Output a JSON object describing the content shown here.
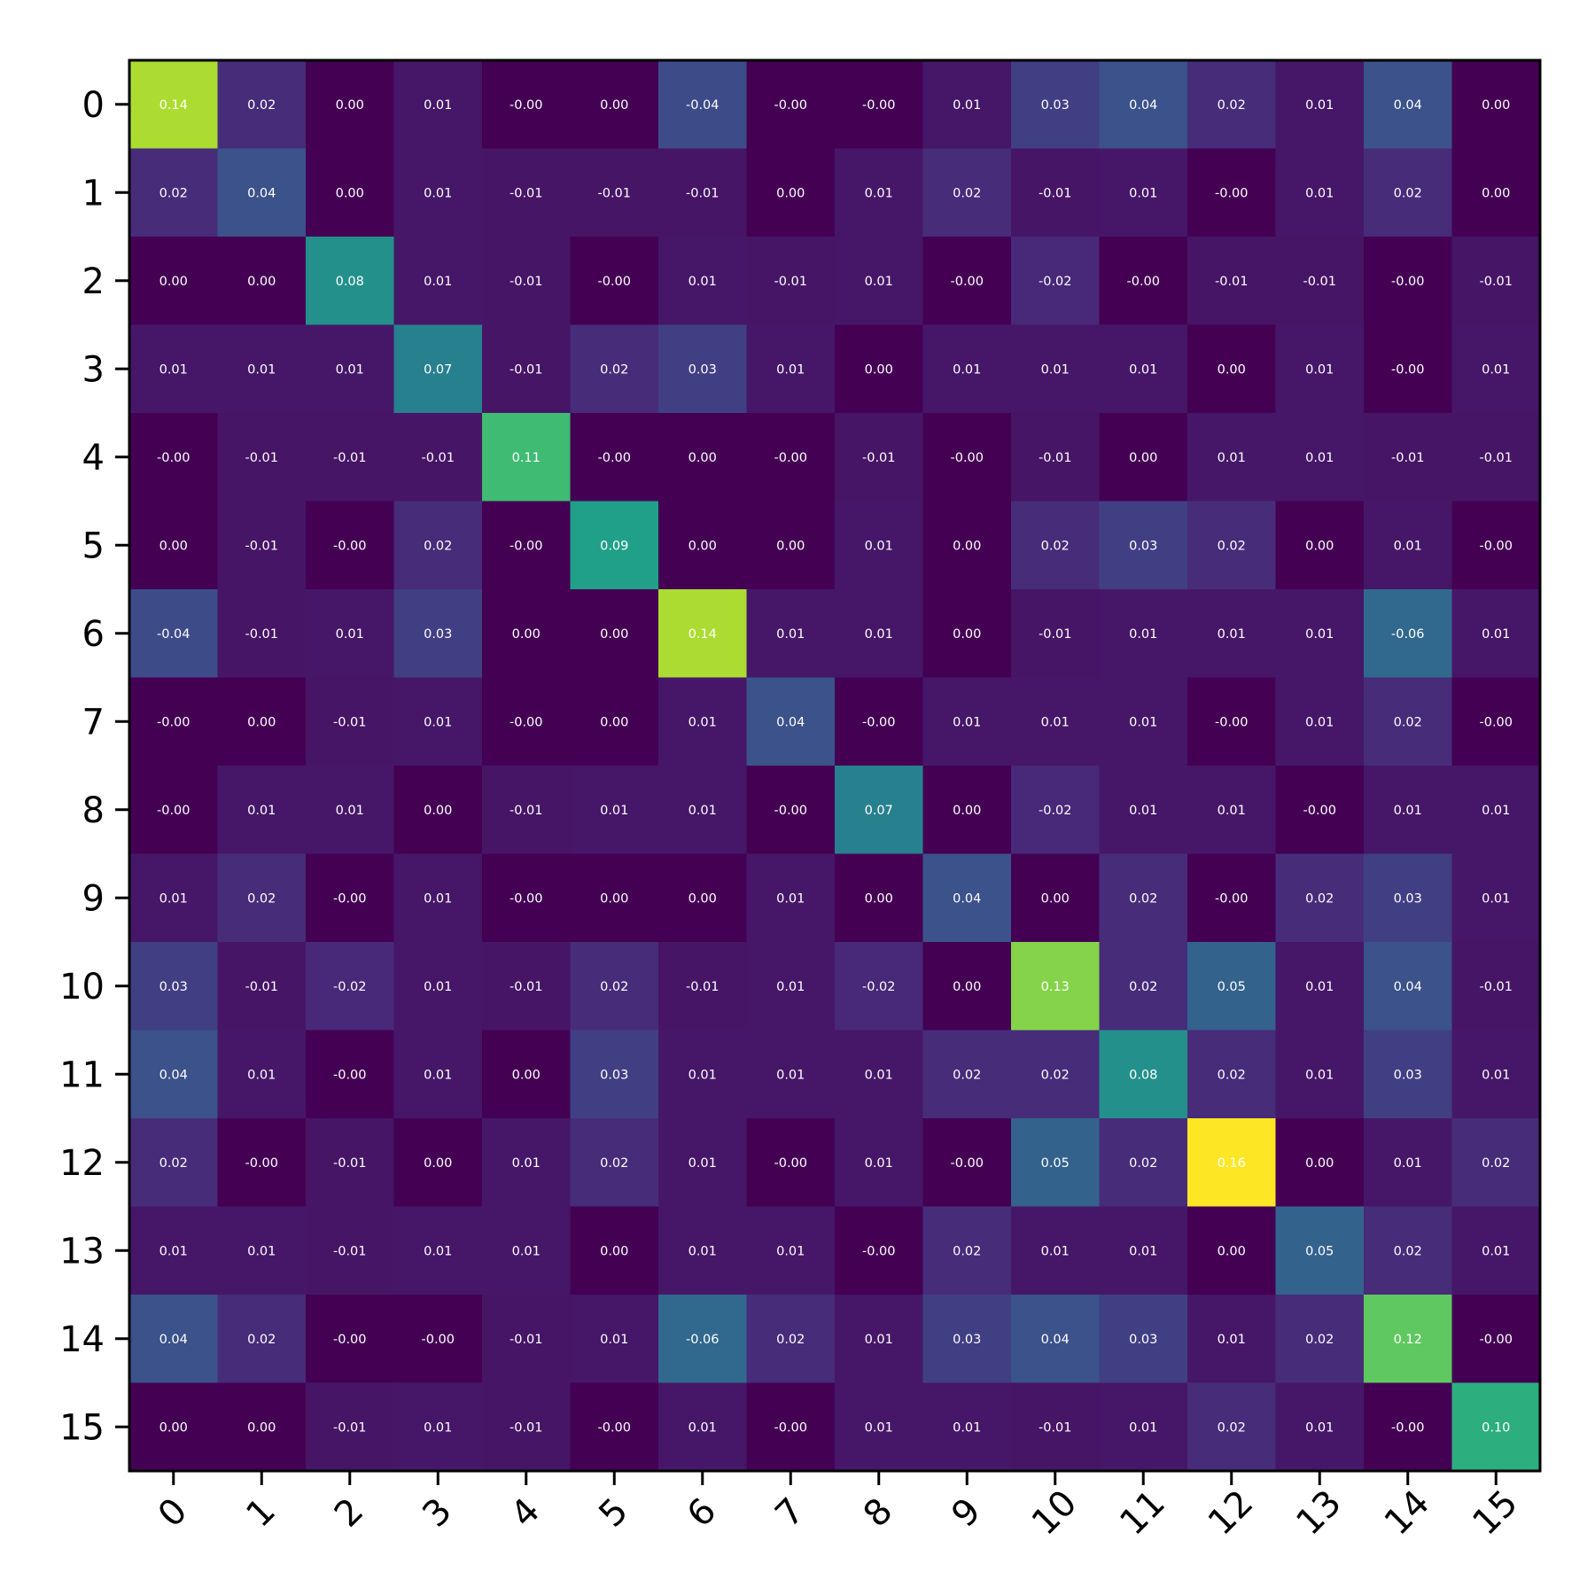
{
  "chart_data": {
    "type": "heatmap",
    "colormap": "viridis",
    "value_range": [
      -0.06,
      0.16
    ],
    "x_labels": [
      "0",
      "1",
      "2",
      "3",
      "4",
      "5",
      "6",
      "7",
      "8",
      "9",
      "10",
      "11",
      "12",
      "13",
      "14",
      "15"
    ],
    "y_labels": [
      "0",
      "1",
      "2",
      "3",
      "4",
      "5",
      "6",
      "7",
      "8",
      "9",
      "10",
      "11",
      "12",
      "13",
      "14",
      "15"
    ],
    "x_tick_rotation": 45,
    "values": [
      [
        0.14,
        0.02,
        0.0,
        0.01,
        -0.0,
        0.0,
        -0.04,
        -0.0,
        -0.0,
        0.01,
        0.03,
        0.04,
        0.02,
        0.01,
        0.04,
        0.0
      ],
      [
        0.02,
        0.04,
        0.0,
        0.01,
        -0.01,
        -0.01,
        -0.01,
        0.0,
        0.01,
        0.02,
        -0.01,
        0.01,
        -0.0,
        0.01,
        0.02,
        0.0
      ],
      [
        0.0,
        0.0,
        0.08,
        0.01,
        -0.01,
        -0.0,
        0.01,
        -0.01,
        0.01,
        -0.0,
        -0.02,
        -0.0,
        -0.01,
        -0.01,
        -0.0,
        -0.01
      ],
      [
        0.01,
        0.01,
        0.01,
        0.07,
        -0.01,
        0.02,
        0.03,
        0.01,
        0.0,
        0.01,
        0.01,
        0.01,
        0.0,
        0.01,
        -0.0,
        0.01
      ],
      [
        -0.0,
        -0.01,
        -0.01,
        -0.01,
        0.11,
        -0.0,
        0.0,
        -0.0,
        -0.01,
        -0.0,
        -0.01,
        0.0,
        0.01,
        0.01,
        -0.01,
        -0.01
      ],
      [
        0.0,
        -0.01,
        -0.0,
        0.02,
        -0.0,
        0.09,
        0.0,
        0.0,
        0.01,
        0.0,
        0.02,
        0.03,
        0.02,
        0.0,
        0.01,
        -0.0
      ],
      [
        -0.04,
        -0.01,
        0.01,
        0.03,
        0.0,
        0.0,
        0.14,
        0.01,
        0.01,
        0.0,
        -0.01,
        0.01,
        0.01,
        0.01,
        -0.06,
        0.01
      ],
      [
        -0.0,
        0.0,
        -0.01,
        0.01,
        -0.0,
        0.0,
        0.01,
        0.04,
        -0.0,
        0.01,
        0.01,
        0.01,
        -0.0,
        0.01,
        0.02,
        -0.0
      ],
      [
        -0.0,
        0.01,
        0.01,
        0.0,
        -0.01,
        0.01,
        0.01,
        -0.0,
        0.07,
        0.0,
        -0.02,
        0.01,
        0.01,
        -0.0,
        0.01,
        0.01
      ],
      [
        0.01,
        0.02,
        -0.0,
        0.01,
        -0.0,
        0.0,
        0.0,
        0.01,
        0.0,
        0.04,
        0.0,
        0.02,
        -0.0,
        0.02,
        0.03,
        0.01
      ],
      [
        0.03,
        -0.01,
        -0.02,
        0.01,
        -0.01,
        0.02,
        -0.01,
        0.01,
        -0.02,
        0.0,
        0.13,
        0.02,
        0.05,
        0.01,
        0.04,
        -0.01
      ],
      [
        0.04,
        0.01,
        -0.0,
        0.01,
        0.0,
        0.03,
        0.01,
        0.01,
        0.01,
        0.02,
        0.02,
        0.08,
        0.02,
        0.01,
        0.03,
        0.01
      ],
      [
        0.02,
        -0.0,
        -0.01,
        0.0,
        0.01,
        0.02,
        0.01,
        -0.0,
        0.01,
        -0.0,
        0.05,
        0.02,
        0.16,
        0.0,
        0.01,
        0.02
      ],
      [
        0.01,
        0.01,
        -0.01,
        0.01,
        0.01,
        0.0,
        0.01,
        0.01,
        -0.0,
        0.02,
        0.01,
        0.01,
        0.0,
        0.05,
        0.02,
        0.01
      ],
      [
        0.04,
        0.02,
        -0.0,
        -0.0,
        -0.01,
        0.01,
        -0.06,
        0.02,
        0.01,
        0.03,
        0.04,
        0.03,
        0.01,
        0.02,
        0.12,
        -0.0
      ],
      [
        0.0,
        0.0,
        -0.01,
        0.01,
        -0.01,
        -0.0,
        0.01,
        -0.0,
        0.01,
        0.01,
        -0.01,
        0.01,
        0.02,
        0.01,
        -0.0,
        0.1
      ]
    ],
    "cell_labels": [
      [
        "0.14",
        "0.02",
        "0.00",
        "0.01",
        "-0.00",
        "0.00",
        "-0.04",
        "-0.00",
        "-0.00",
        "0.01",
        "0.03",
        "0.04",
        "0.02",
        "0.01",
        "0.04",
        "0.00"
      ],
      [
        "0.02",
        "0.04",
        "0.00",
        "0.01",
        "-0.01",
        "-0.01",
        "-0.01",
        "0.00",
        "0.01",
        "0.02",
        "-0.01",
        "0.01",
        "-0.00",
        "0.01",
        "0.02",
        "0.00"
      ],
      [
        "0.00",
        "0.00",
        "0.08",
        "0.01",
        "-0.01",
        "-0.00",
        "0.01",
        "-0.01",
        "0.01",
        "-0.00",
        "-0.02",
        "-0.00",
        "-0.01",
        "-0.01",
        "-0.00",
        "-0.01"
      ],
      [
        "0.01",
        "0.01",
        "0.01",
        "0.07",
        "-0.01",
        "0.02",
        "0.03",
        "0.01",
        "0.00",
        "0.01",
        "0.01",
        "0.01",
        "0.00",
        "0.01",
        "-0.00",
        "0.01"
      ],
      [
        "-0.00",
        "-0.01",
        "-0.01",
        "-0.01",
        "0.11",
        "-0.00",
        "0.00",
        "-0.00",
        "-0.01",
        "-0.00",
        "-0.01",
        "0.00",
        "0.01",
        "0.01",
        "-0.01",
        "-0.01"
      ],
      [
        "0.00",
        "-0.01",
        "-0.00",
        "0.02",
        "-0.00",
        "0.09",
        "0.00",
        "0.00",
        "0.01",
        "0.00",
        "0.02",
        "0.03",
        "0.02",
        "0.00",
        "0.01",
        "-0.00"
      ],
      [
        "-0.04",
        "-0.01",
        "0.01",
        "0.03",
        "0.00",
        "0.00",
        "0.14",
        "0.01",
        "0.01",
        "0.00",
        "-0.01",
        "0.01",
        "0.01",
        "0.01",
        "-0.06",
        "0.01"
      ],
      [
        "-0.00",
        "0.00",
        "-0.01",
        "0.01",
        "-0.00",
        "0.00",
        "0.01",
        "0.04",
        "-0.00",
        "0.01",
        "0.01",
        "0.01",
        "-0.00",
        "0.01",
        "0.02",
        "-0.00"
      ],
      [
        "-0.00",
        "0.01",
        "0.01",
        "0.00",
        "-0.01",
        "0.01",
        "0.01",
        "-0.00",
        "0.07",
        "0.00",
        "-0.02",
        "0.01",
        "0.01",
        "-0.00",
        "0.01",
        "0.01"
      ],
      [
        "0.01",
        "0.02",
        "-0.00",
        "0.01",
        "-0.00",
        "0.00",
        "0.00",
        "0.01",
        "0.00",
        "0.04",
        "0.00",
        "0.02",
        "-0.00",
        "0.02",
        "0.03",
        "0.01"
      ],
      [
        "0.03",
        "-0.01",
        "-0.02",
        "0.01",
        "-0.01",
        "0.02",
        "-0.01",
        "0.01",
        "-0.02",
        "0.00",
        "0.13",
        "0.02",
        "0.05",
        "0.01",
        "0.04",
        "-0.01"
      ],
      [
        "0.04",
        "0.01",
        "-0.00",
        "0.01",
        "0.00",
        "0.03",
        "0.01",
        "0.01",
        "0.01",
        "0.02",
        "0.02",
        "0.08",
        "0.02",
        "0.01",
        "0.03",
        "0.01"
      ],
      [
        "0.02",
        "-0.00",
        "-0.01",
        "0.00",
        "0.01",
        "0.02",
        "0.01",
        "-0.00",
        "0.01",
        "-0.00",
        "0.05",
        "0.02",
        "0.16",
        "0.00",
        "0.01",
        "0.02"
      ],
      [
        "0.01",
        "0.01",
        "-0.01",
        "0.01",
        "0.01",
        "0.00",
        "0.01",
        "0.01",
        "-0.00",
        "0.02",
        "0.01",
        "0.01",
        "0.00",
        "0.05",
        "0.02",
        "0.01"
      ],
      [
        "0.04",
        "0.02",
        "-0.00",
        "-0.00",
        "-0.01",
        "0.01",
        "-0.06",
        "0.02",
        "0.01",
        "0.03",
        "0.04",
        "0.03",
        "0.01",
        "0.02",
        "0.12",
        "-0.00"
      ],
      [
        "0.00",
        "0.00",
        "-0.01",
        "0.01",
        "-0.01",
        "-0.00",
        "0.01",
        "-0.00",
        "0.01",
        "0.01",
        "-0.01",
        "0.01",
        "0.02",
        "0.01",
        "-0.00",
        "0.10"
      ]
    ]
  }
}
